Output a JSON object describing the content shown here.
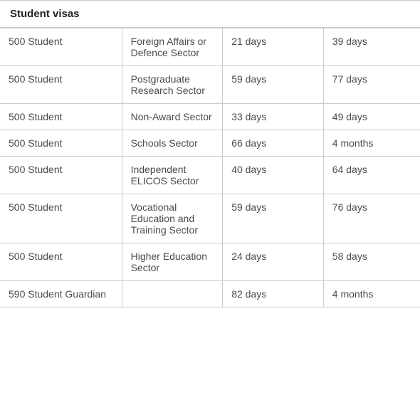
{
  "table": {
    "title": "Student visas",
    "columns": [
      {
        "width": "29%"
      },
      {
        "width": "24%"
      },
      {
        "width": "24%"
      },
      {
        "width": "23%"
      }
    ],
    "rows": [
      [
        "500 Student",
        "Foreign Affairs or Defence Sector",
        "21 days",
        "39 days"
      ],
      [
        "500 Student",
        "Postgraduate Research Sector",
        "59 days",
        "77 days"
      ],
      [
        "500 Student",
        "Non-Award Sector",
        "33 days",
        "49 days"
      ],
      [
        "500 Student",
        "Schools Sector",
        "66 days",
        "4 months"
      ],
      [
        "500 Student",
        "Independent ELICOS Sector",
        "40 days",
        "64 days"
      ],
      [
        "500 Student",
        "Vocational Education and Training Sector",
        "59 days",
        "76 days"
      ],
      [
        "500 Student",
        "Higher Education Sector",
        "24 days",
        "58 days"
      ],
      [
        "590 Student Guardian",
        "",
        "82 days",
        "4 months"
      ]
    ],
    "styling": {
      "background_color": "#ffffff",
      "border_color": "#cccccc",
      "text_color": "#4a4a4a",
      "title_color": "#222222",
      "font_family": "Arial, Helvetica, sans-serif",
      "font_size": 14,
      "title_font_size": 15,
      "title_font_weight": "bold",
      "cell_padding": "10px 12px"
    }
  }
}
